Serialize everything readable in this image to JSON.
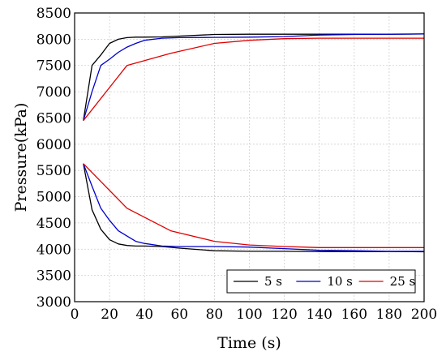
{
  "chart_data": {
    "type": "line",
    "title": "",
    "xlabel": "Time (s)",
    "ylabel": "Pressure(kPa)",
    "xlim": [
      0,
      200
    ],
    "ylim": [
      3000,
      8500
    ],
    "xticks": [
      0,
      20,
      40,
      60,
      80,
      100,
      120,
      140,
      160,
      180,
      200
    ],
    "yticks": [
      3000,
      3500,
      4000,
      4500,
      5000,
      5500,
      6000,
      6500,
      7000,
      7500,
      8000,
      8500
    ],
    "grid": true,
    "legend_position": "bottom-right",
    "series": [
      {
        "name": "5 s",
        "color": "#000000",
        "curves": [
          {
            "x": [
              5,
              10,
              15,
              20,
              25,
              30,
              35,
              40,
              50,
              60,
              80,
              100,
              120,
              140,
              160,
              180,
              200
            ],
            "y": [
              6450,
              7500,
              7700,
              7920,
              8000,
              8030,
              8040,
              8040,
              8045,
              8060,
              8090,
              8095,
              8095,
              8095,
              8095,
              8095,
              8100
            ]
          },
          {
            "x": [
              5,
              10,
              15,
              20,
              25,
              30,
              35,
              40,
              50,
              60,
              80,
              100,
              120,
              140,
              160,
              180,
              200
            ],
            "y": [
              5630,
              4750,
              4380,
              4180,
              4100,
              4070,
              4060,
              4060,
              4050,
              4020,
              3970,
              3960,
              3960,
              3955,
              3955,
              3955,
              3950
            ]
          }
        ]
      },
      {
        "name": "10 s",
        "color": "#0000cc",
        "curves": [
          {
            "x": [
              5,
              10,
              15,
              20,
              25,
              30,
              35,
              40,
              50,
              60,
              80,
              100,
              120,
              140,
              160,
              180,
              200
            ],
            "y": [
              6450,
              7000,
              7500,
              7620,
              7750,
              7850,
              7920,
              7980,
              8020,
              8030,
              8035,
              8040,
              8050,
              8080,
              8090,
              8095,
              8100
            ]
          },
          {
            "x": [
              5,
              10,
              15,
              20,
              25,
              30,
              35,
              40,
              50,
              60,
              80,
              100,
              120,
              140,
              160,
              180,
              200
            ],
            "y": [
              5630,
              5200,
              4780,
              4550,
              4350,
              4250,
              4150,
              4110,
              4060,
              4050,
              4050,
              4040,
              4010,
              3980,
              3970,
              3960,
              3960
            ]
          }
        ]
      },
      {
        "name": "25 s",
        "color": "#e00000",
        "curves": [
          {
            "x": [
              5,
              30,
              55,
              80,
              100,
              120,
              140,
              160,
              180,
              200
            ],
            "y": [
              6450,
              7500,
              7730,
              7920,
              7980,
              8010,
              8020,
              8020,
              8020,
              8020
            ]
          },
          {
            "x": [
              5,
              30,
              55,
              80,
              100,
              120,
              140,
              160,
              180,
              200
            ],
            "y": [
              5630,
              4780,
              4350,
              4150,
              4080,
              4050,
              4030,
              4030,
              4030,
              4030
            ]
          }
        ]
      }
    ]
  }
}
